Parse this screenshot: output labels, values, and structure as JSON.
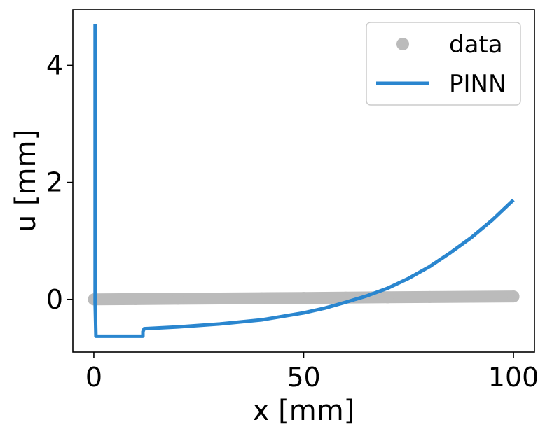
{
  "chart_data": {
    "type": "line",
    "xlabel": "x [mm]",
    "ylabel": "u [mm]",
    "xlim": [
      -5,
      105
    ],
    "ylim": [
      -0.9,
      4.95
    ],
    "x_ticks": [
      0,
      50,
      100
    ],
    "y_ticks": [
      0,
      2,
      4
    ],
    "grid": false,
    "legend_position": "top-right",
    "series": [
      {
        "name": "data",
        "kind": "scatter",
        "color": "#bbbbbb",
        "x": [
          0,
          10,
          20,
          30,
          40,
          50,
          60,
          70,
          80,
          90,
          100
        ],
        "y": [
          0.0,
          0.005,
          0.01,
          0.015,
          0.02,
          0.025,
          0.03,
          0.035,
          0.04,
          0.045,
          0.05
        ]
      },
      {
        "name": "PINN",
        "kind": "line",
        "color": "#2a86cf",
        "x": [
          0.3,
          0.3,
          0.5,
          11.7,
          11.7,
          12.0,
          20,
          30,
          40,
          50,
          55,
          60,
          65,
          70,
          75,
          80,
          85,
          90,
          95,
          100
        ],
        "y": [
          4.7,
          -0.05,
          -0.63,
          -0.63,
          -0.55,
          -0.5,
          -0.47,
          -0.42,
          -0.35,
          -0.23,
          -0.15,
          -0.05,
          0.06,
          0.19,
          0.36,
          0.56,
          0.8,
          1.06,
          1.36,
          1.7
        ]
      }
    ]
  }
}
